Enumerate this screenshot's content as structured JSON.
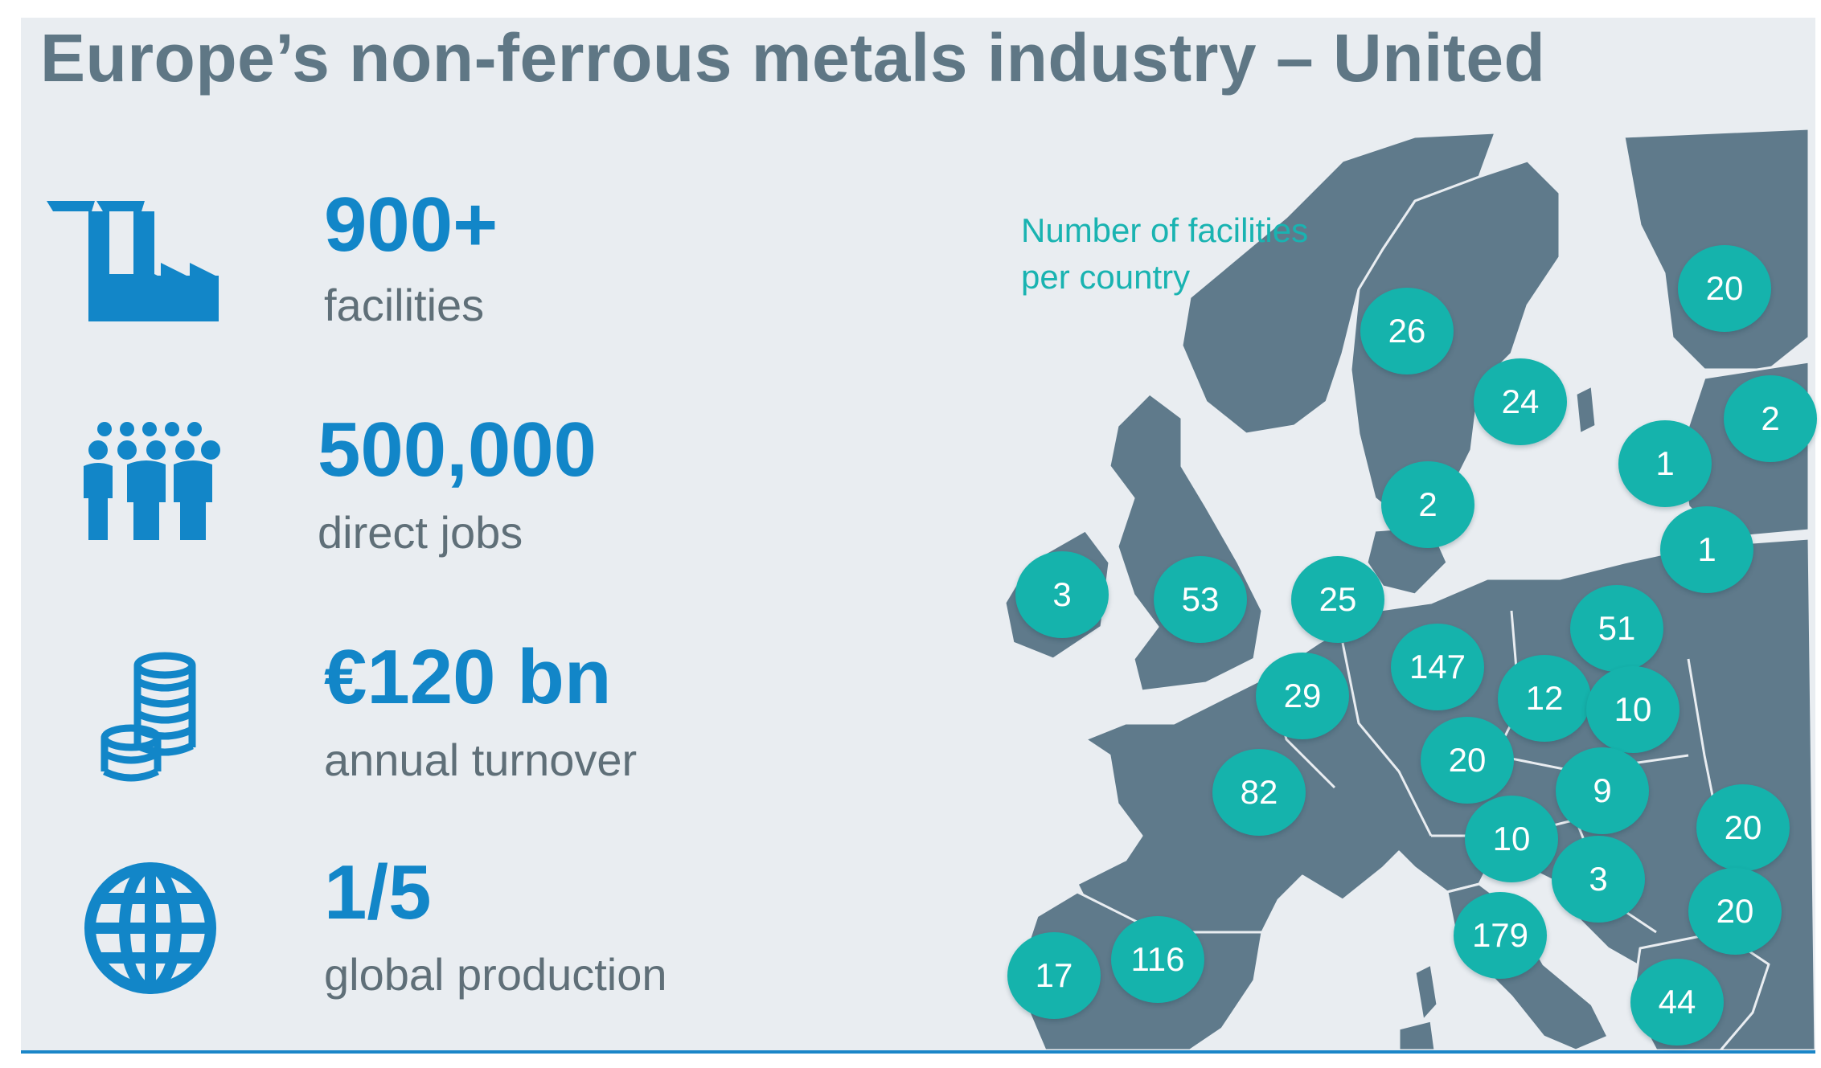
{
  "title": "Europe’s non-ferrous metals industry – United",
  "stats": [
    {
      "value": "900+",
      "label": "facilities",
      "icon": "factory-icon"
    },
    {
      "value": "500,000",
      "label": "direct jobs",
      "icon": "people-icon"
    },
    {
      "value": "€120 bn",
      "label": "annual turnover",
      "icon": "coins-icon"
    },
    {
      "value": "1/5",
      "label": "global production",
      "icon": "globe-icon"
    }
  ],
  "map": {
    "legend_line1": "Number of facilities",
    "legend_line2": "per country",
    "land_color": "#5f7a8b",
    "bubble_color": "#15b3ac",
    "counts": {
      "ireland": "3",
      "uk": "53",
      "norway": "26",
      "sweden": "24",
      "finland": "20",
      "estonia": "2",
      "latvia": "1",
      "lithuania": "1",
      "denmark": "2",
      "netherlands": "25",
      "belgium": "29",
      "germany": "147",
      "poland": "51",
      "czechia": "12",
      "slovakia": "10",
      "france": "82",
      "switzerland": "20",
      "hungary": "9",
      "slovenia": "10",
      "croatia": "3",
      "romania": "20",
      "bulgaria": "20",
      "italy": "179",
      "greece": "44",
      "portugal": "17",
      "spain": "116"
    }
  },
  "colors": {
    "accent": "#1286c8",
    "title": "#5f7785",
    "label": "#5f6f78",
    "background": "#e9edf1",
    "teal": "#19b3b1"
  }
}
